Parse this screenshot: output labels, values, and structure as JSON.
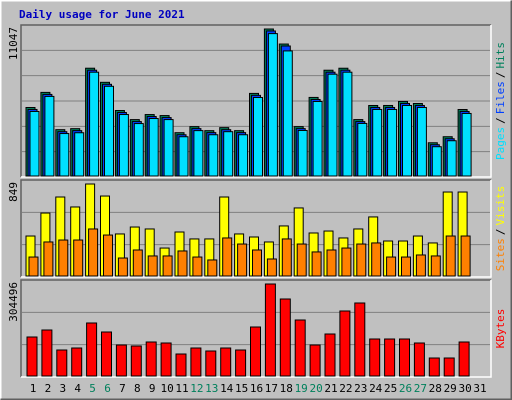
{
  "chart_data": {
    "type": "bar",
    "title": "Daily usage for June 2021",
    "categories": [
      "1",
      "2",
      "3",
      "4",
      "5",
      "6",
      "7",
      "8",
      "9",
      "10",
      "11",
      "12",
      "13",
      "14",
      "15",
      "16",
      "17",
      "18",
      "19",
      "20",
      "21",
      "22",
      "23",
      "24",
      "25",
      "26",
      "27",
      "28",
      "29",
      "30",
      "31"
    ],
    "label_colors": [
      "#000000",
      "#000000",
      "#000000",
      "#000000",
      "#00805c",
      "#00805c",
      "#000000",
      "#000000",
      "#000000",
      "#000000",
      "#000000",
      "#00805c",
      "#00805c",
      "#000000",
      "#000000",
      "#000000",
      "#000000",
      "#000000",
      "#00805c",
      "#00805c",
      "#000000",
      "#000000",
      "#000000",
      "#000000",
      "#000000",
      "#00805c",
      "#00805c",
      "#000000",
      "#000000",
      "#000000",
      "#000000"
    ],
    "legend_separator": "/",
    "panels": [
      {
        "ylim": [
          0,
          11047
        ],
        "yticks": [
          11047
        ],
        "grid": true,
        "grid_divisions": 6,
        "series": [
          {
            "name": "Hits",
            "color": "#00805c",
            "values": [
              5148,
              6283,
              3482,
              3558,
              8100,
              7040,
              4921,
              4239,
              4618,
              4542,
              3255,
              3709,
              3407,
              3634,
              3407,
              6207,
              11047,
              9917,
              3710,
              5905,
              7949,
              8099,
              4240,
              5299,
              5300,
              5602,
              5450,
              2498,
              2952,
              4996,
              null
            ]
          },
          {
            "name": "Files",
            "color": "#0040ff",
            "values": [
              5000,
              6130,
              3330,
              3410,
              7950,
              6890,
              4770,
              4090,
              4470,
              4390,
              3100,
              3560,
              3260,
              3480,
              3260,
              6060,
              10900,
              9770,
              3560,
              5750,
              7800,
              7950,
              4090,
              5150,
              5150,
              5450,
              5300,
              2350,
              2800,
              4850,
              null
            ]
          },
          {
            "name": "Pages",
            "color": "#00e0ff",
            "values": [
              4850,
              5980,
              3190,
              3250,
              7800,
              6740,
              4620,
              3940,
              4320,
              4240,
              2950,
              3410,
              3100,
              3330,
              3100,
              5900,
              10700,
              9400,
              3420,
              5600,
              7650,
              7800,
              3950,
              5000,
              5000,
              5300,
              5150,
              2200,
              2650,
              4700,
              null
            ]
          }
        ]
      },
      {
        "ylim": [
          0,
          849
        ],
        "yticks": [
          849
        ],
        "grid": true,
        "grid_divisions": 3,
        "series": [
          {
            "name": "Visits",
            "color": "#ffff00",
            "values": [
              369,
              581,
              729,
              637,
              849,
              738,
              388,
              452,
              434,
              258,
              406,
              342,
              342,
              729,
              388,
              360,
              314,
              462,
              628,
              397,
              415,
              351,
              434,
              545,
              323,
              323,
              369,
              305,
              775,
              775,
              null
            ]
          },
          {
            "name": "Sites",
            "color": "#ff8000",
            "values": [
              175,
              314,
              332,
              332,
              434,
              378,
              166,
              240,
              185,
              185,
              231,
              175,
              148,
              351,
              295,
              240,
              157,
              342,
              295,
              222,
              240,
              258,
              295,
              305,
              175,
              175,
              194,
              185,
              369,
              369,
              null
            ]
          }
        ]
      },
      {
        "ylim": [
          0,
          304496
        ],
        "yticks": [
          304496
        ],
        "grid": true,
        "grid_divisions": 3,
        "series": [
          {
            "name": "KBytes",
            "color": "#ff0000",
            "values": [
              129090,
              152260,
              86060,
              92680,
              175430,
              145640,
              102610,
              99300,
              112540,
              109230,
              72820,
              92680,
              82750,
              92680,
              86060,
              162190,
              304496,
              254870,
              185360,
              102610,
              139020,
              215150,
              241630,
              122470,
              122470,
              122470,
              109230,
              59580,
              59580,
              112540,
              null
            ]
          }
        ]
      }
    ]
  }
}
